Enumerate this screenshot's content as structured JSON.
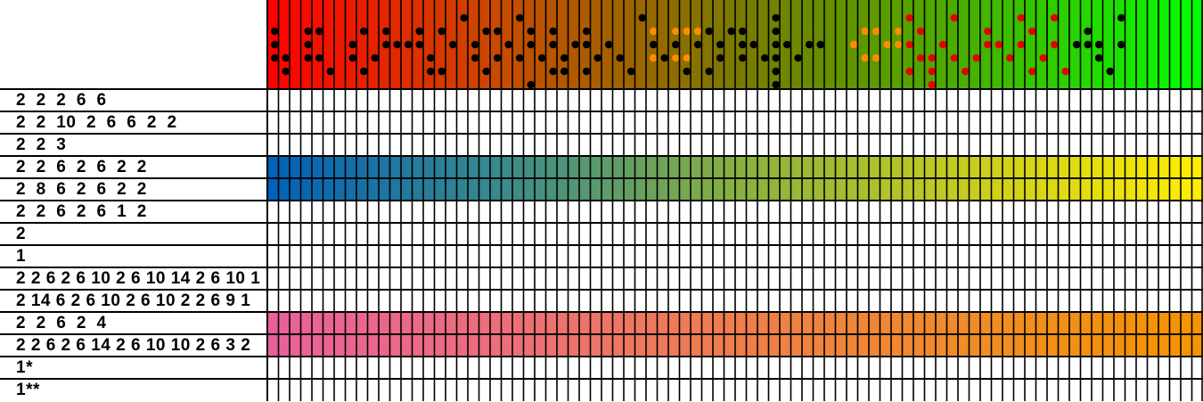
{
  "rows": [
    {
      "label": "2  2  2  6  6"
    },
    {
      "label": "2  2  10  2  6  6  2  2"
    },
    {
      "label": "2  2  3"
    },
    {
      "label": "2  2  6  2  6  2  2",
      "band": "blue-yellow"
    },
    {
      "label": "2  8  6  2  6  2  2",
      "band": "blue-yellow"
    },
    {
      "label": "2  2  6  2  6  1  2"
    },
    {
      "label": "2"
    },
    {
      "label": "1"
    },
    {
      "label": "2 2 6 2 6 10 2 6 10 14 2 6 10 1"
    },
    {
      "label": "2 14 6 2 6 10 2 6 10 2 2 6 9 1"
    },
    {
      "label": "2  2  6  2  4",
      "band": "pink-orange"
    },
    {
      "label": "2 2 6 2 6 14 2 6 10 10 2 6 3 2",
      "band": "pink-orange"
    },
    {
      "label": "1*"
    },
    {
      "label": "1**"
    }
  ],
  "colors": {
    "header_gradient": [
      "#ff0000",
      "#c84b00",
      "#7a7a00",
      "#48b000",
      "#00ff00"
    ],
    "band_blue_yellow": [
      "#0060b8",
      "#3a8a8c",
      "#88b040",
      "#c8cc20",
      "#ffee00"
    ],
    "band_pink_orange": [
      "#e8609c",
      "#ec6e7a",
      "#ee7e4c",
      "#f08c28",
      "#f59400"
    ],
    "dot_black": "#000000",
    "dot_orange": "#ff8c00",
    "dot_red": "#e80000"
  },
  "header_dots": [
    {
      "col": 0,
      "rows": [
        1,
        2,
        3
      ]
    },
    {
      "col": 1,
      "rows": [
        3,
        4
      ]
    },
    {
      "col": 3,
      "rows": [
        1,
        2,
        3
      ]
    },
    {
      "col": 4,
      "rows": [
        1,
        3
      ]
    },
    {
      "col": 5,
      "rows": [
        4
      ]
    },
    {
      "col": 7,
      "rows": [
        2,
        3
      ]
    },
    {
      "col": 8,
      "rows": [
        1,
        4
      ]
    },
    {
      "col": 9,
      "rows": [
        3
      ]
    },
    {
      "col": 10,
      "rows": [
        1,
        2
      ]
    },
    {
      "col": 11,
      "rows": [
        2
      ]
    },
    {
      "col": 12,
      "rows": [
        2
      ]
    },
    {
      "col": 13,
      "rows": [
        1,
        2
      ]
    },
    {
      "col": 14,
      "rows": [
        3,
        4
      ]
    },
    {
      "col": 15,
      "rows": [
        1,
        4
      ]
    },
    {
      "col": 16,
      "rows": [
        2
      ]
    },
    {
      "col": 17,
      "rows": [
        0
      ]
    },
    {
      "col": 18,
      "rows": [
        2,
        3
      ]
    },
    {
      "col": 19,
      "rows": [
        1,
        4
      ]
    },
    {
      "col": 20,
      "rows": [
        1,
        3
      ]
    },
    {
      "col": 21,
      "rows": [
        2
      ]
    },
    {
      "col": 22,
      "rows": [
        0,
        3
      ]
    },
    {
      "col": 23,
      "rows": [
        1,
        2,
        5
      ]
    },
    {
      "col": 24,
      "rows": [
        3
      ]
    },
    {
      "col": 25,
      "rows": [
        1,
        2,
        4
      ]
    },
    {
      "col": 26,
      "rows": [
        3,
        4
      ]
    },
    {
      "col": 27,
      "rows": [
        2
      ]
    },
    {
      "col": 28,
      "rows": [
        1,
        2,
        4
      ]
    },
    {
      "col": 29,
      "rows": [
        3
      ]
    },
    {
      "col": 30,
      "rows": [
        2
      ]
    },
    {
      "col": 31,
      "rows": [
        3
      ]
    },
    {
      "col": 32,
      "rows": [
        4
      ]
    },
    {
      "col": 33,
      "rows": [
        0
      ]
    },
    {
      "col": 34,
      "rows": [
        2
      ]
    },
    {
      "col": 35,
      "rows": [
        3
      ]
    },
    {
      "col": 36,
      "rows": [
        1,
        2,
        3
      ]
    },
    {
      "col": 37,
      "rows": [
        3,
        4
      ]
    },
    {
      "col": 38,
      "rows": [
        2
      ]
    },
    {
      "col": 39,
      "rows": [
        1,
        4
      ]
    },
    {
      "col": 40,
      "rows": [
        2,
        3
      ]
    },
    {
      "col": 41,
      "rows": [
        1
      ]
    },
    {
      "col": 42,
      "rows": [
        1,
        2,
        3
      ]
    },
    {
      "col": 43,
      "rows": [
        2
      ]
    },
    {
      "col": 44,
      "rows": [
        3
      ]
    },
    {
      "col": 45,
      "rows": [
        0,
        1,
        2,
        3,
        4,
        5
      ]
    },
    {
      "col": 46,
      "rows": [
        2
      ]
    },
    {
      "col": 47,
      "rows": [
        3
      ]
    },
    {
      "col": 48,
      "rows": [
        2
      ]
    },
    {
      "col": 49,
      "rows": [
        2
      ]
    }
  ],
  "header_orange_dots": [
    {
      "col": 34,
      "rows": [
        1,
        3
      ]
    },
    {
      "col": 36,
      "rows": [
        1,
        3
      ]
    },
    {
      "col": 37,
      "rows": [
        1,
        3
      ]
    },
    {
      "col": 38,
      "rows": [
        1
      ]
    },
    {
      "col": 52,
      "rows": [
        2
      ]
    },
    {
      "col": 53,
      "rows": [
        1,
        3
      ]
    },
    {
      "col": 54,
      "rows": [
        1,
        3
      ]
    },
    {
      "col": 55,
      "rows": [
        2
      ]
    },
    {
      "col": 56,
      "rows": [
        1,
        2
      ]
    }
  ],
  "header_red_dots": [
    {
      "col": 57,
      "rows": [
        0,
        2,
        4
      ]
    },
    {
      "col": 58,
      "rows": [
        1,
        3
      ]
    },
    {
      "col": 59,
      "rows": [
        3,
        4,
        5
      ]
    },
    {
      "col": 60,
      "rows": [
        2
      ]
    },
    {
      "col": 61,
      "rows": [
        0,
        3
      ]
    },
    {
      "col": 62,
      "rows": [
        4
      ]
    },
    {
      "col": 63,
      "rows": [
        3
      ]
    },
    {
      "col": 64,
      "rows": [
        1,
        2
      ]
    },
    {
      "col": 65,
      "rows": [
        2
      ]
    },
    {
      "col": 66,
      "rows": [
        3
      ]
    },
    {
      "col": 67,
      "rows": [
        0,
        2
      ]
    },
    {
      "col": 68,
      "rows": [
        1,
        4
      ]
    },
    {
      "col": 69,
      "rows": [
        3
      ]
    },
    {
      "col": 70,
      "rows": [
        0,
        2
      ]
    },
    {
      "col": 71,
      "rows": [
        4
      ]
    }
  ],
  "header_black_late": [
    {
      "col": 72,
      "rows": [
        2
      ]
    },
    {
      "col": 73,
      "rows": [
        1,
        2
      ]
    },
    {
      "col": 74,
      "rows": [
        2,
        3
      ]
    },
    {
      "col": 75,
      "rows": [
        4
      ]
    },
    {
      "col": 76,
      "rows": [
        0,
        2
      ]
    }
  ]
}
